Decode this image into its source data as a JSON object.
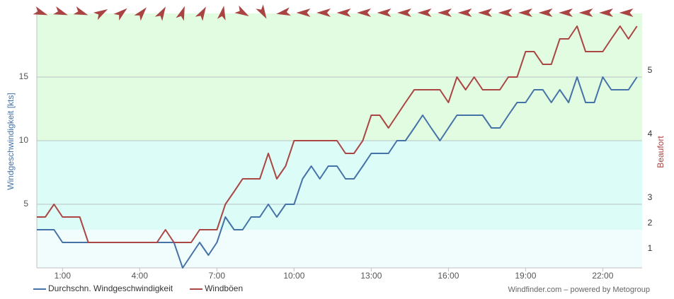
{
  "chart_data": {
    "type": "line",
    "y_title": "Windgeschwindigkeit [kts]",
    "y2_title": "Beaufort",
    "credit": "Windfinder.com – powered by Metogroup",
    "x": [
      0,
      0.33,
      0.67,
      1,
      1.33,
      1.67,
      2,
      2.33,
      2.67,
      3,
      3.33,
      3.67,
      4,
      4.33,
      4.67,
      5,
      5.33,
      5.67,
      6,
      6.33,
      6.67,
      7,
      7.33,
      7.67,
      8,
      8.33,
      8.67,
      9,
      9.33,
      9.67,
      10,
      10.33,
      10.67,
      11,
      11.33,
      11.67,
      12,
      12.33,
      12.67,
      13,
      13.33,
      13.67,
      14,
      14.33,
      14.67,
      15,
      15.33,
      15.67,
      16,
      16.33,
      16.67,
      17,
      17.33,
      17.67,
      18,
      18.33,
      18.67,
      19,
      19.33,
      19.67,
      20,
      20.33,
      20.67,
      21,
      21.33,
      21.67,
      22,
      22.33,
      22.67,
      23,
      23.33
    ],
    "series": [
      {
        "name": "Durchschn. Windgeschwindigkeit",
        "color": "#4572a7",
        "values": [
          3,
          3,
          3,
          2,
          2,
          2,
          2,
          2,
          2,
          2,
          2,
          2,
          2,
          2,
          2,
          2,
          2,
          0,
          1,
          2,
          1,
          2,
          4,
          3,
          3,
          4,
          4,
          5,
          4,
          5,
          5,
          7,
          8,
          7,
          8,
          8,
          7,
          7,
          8,
          9,
          9,
          9,
          10,
          10,
          11,
          12,
          11,
          10,
          11,
          12,
          12,
          12,
          12,
          11,
          11,
          12,
          13,
          13,
          14,
          14,
          13,
          14,
          13,
          15,
          13,
          13,
          15,
          14,
          14,
          14,
          15
        ]
      },
      {
        "name": "Windböen",
        "color": "#aa4643",
        "values": [
          4,
          4,
          5,
          4,
          4,
          4,
          2,
          2,
          2,
          2,
          2,
          2,
          2,
          2,
          2,
          3,
          2,
          2,
          2,
          3,
          3,
          3,
          5,
          6,
          7,
          7,
          7,
          9,
          7,
          8,
          10,
          10,
          10,
          10,
          10,
          10,
          9,
          9,
          10,
          12,
          12,
          11,
          12,
          13,
          14,
          14,
          14,
          14,
          13,
          15,
          14,
          15,
          14,
          14,
          14,
          15,
          15,
          17,
          17,
          16,
          16,
          18,
          18,
          19,
          17,
          17,
          17,
          18,
          19,
          18,
          19
        ]
      }
    ],
    "xlim": [
      0,
      23.53
    ],
    "xticks": [
      {
        "value": 1,
        "label": "1:00"
      },
      {
        "value": 4,
        "label": "4:00"
      },
      {
        "value": 7,
        "label": "7:00"
      },
      {
        "value": 10,
        "label": "10:00"
      },
      {
        "value": 13,
        "label": "13:00"
      },
      {
        "value": 16,
        "label": "16:00"
      },
      {
        "value": 19,
        "label": "19:00"
      },
      {
        "value": 22,
        "label": "22:00"
      }
    ],
    "ylim": [
      0,
      20
    ],
    "yticks": [
      5,
      10,
      15
    ],
    "grid": true,
    "beaufort_ticks": [
      {
        "value": 1.5,
        "label": "1"
      },
      {
        "value": 3.5,
        "label": "2"
      },
      {
        "value": 5.5,
        "label": "3"
      },
      {
        "value": 10.5,
        "label": "4"
      },
      {
        "value": 15.5,
        "label": "5"
      }
    ],
    "bands": [
      {
        "from": 0,
        "to": 3,
        "color": "#f0fdfc"
      },
      {
        "from": 3,
        "to": 10,
        "color": "#dcfcf8"
      },
      {
        "from": 10,
        "to": 20,
        "color": "#e2fce2"
      }
    ],
    "wind_direction": [
      20,
      20,
      20,
      -30,
      -40,
      -50,
      -60,
      -70,
      -60,
      -80,
      30,
      60,
      170,
      180,
      180,
      180,
      180,
      180,
      180,
      180,
      180,
      180,
      180,
      180,
      180,
      180,
      180,
      180,
      180,
      180
    ],
    "arrow_color": "#a94442"
  }
}
